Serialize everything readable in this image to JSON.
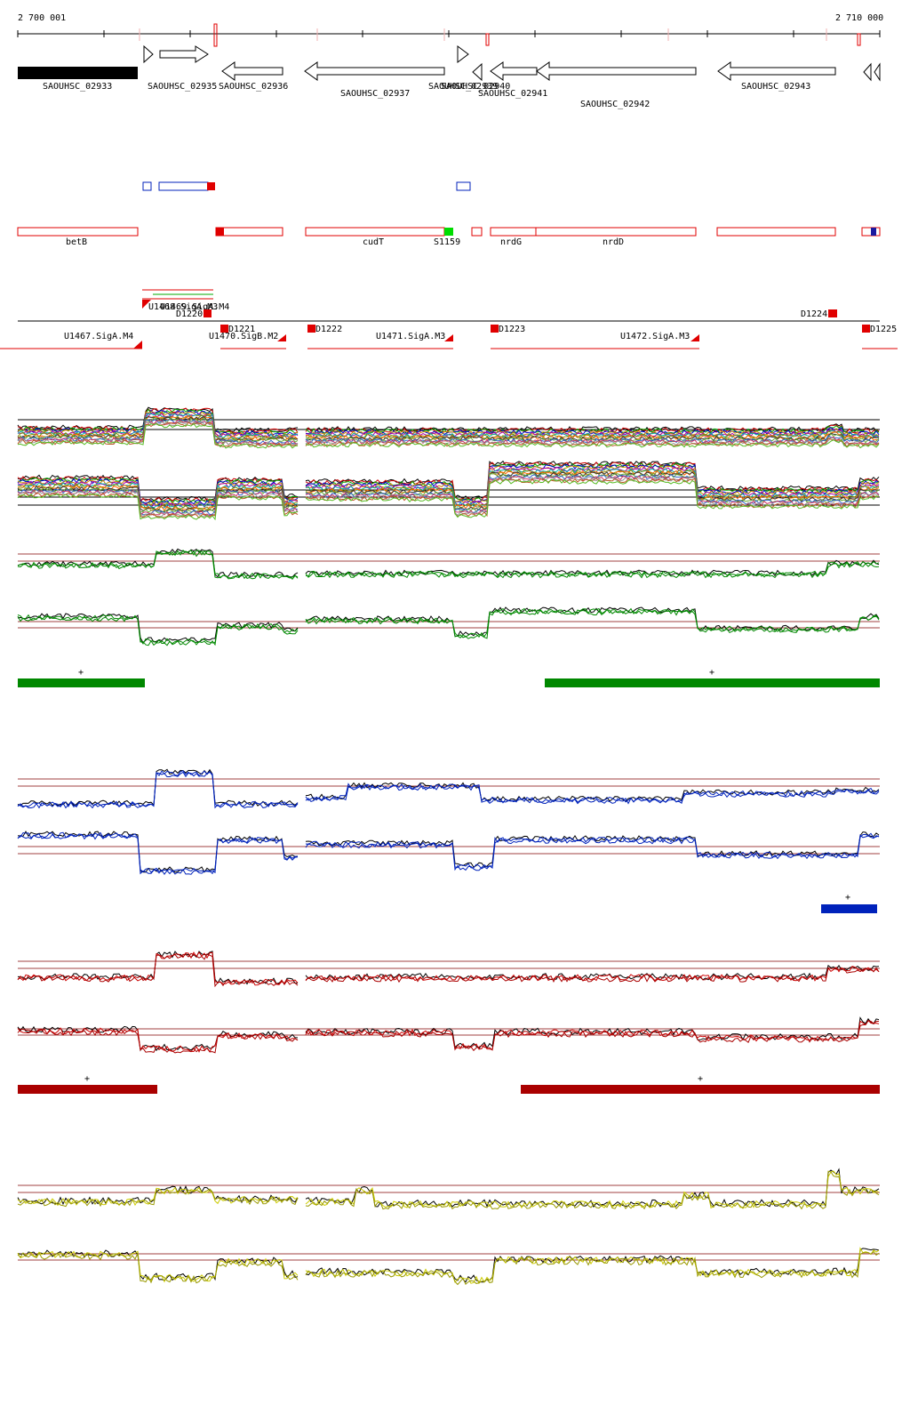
{
  "ruler": {
    "start": "2 700 001",
    "end": "2 710 000"
  },
  "genes": [
    {
      "label": "SAOUHSC_02933"
    },
    {
      "label": "SAOUHSC_02935"
    },
    {
      "label": "SAOUHSC_02936"
    },
    {
      "label": "SAOUHSC_02937"
    },
    {
      "label": "SAOUHSC_02939"
    },
    {
      "label": "SAOUHSC_02940"
    },
    {
      "label": "SAOUHSC_02941"
    },
    {
      "label": "SAOUHSC_02942"
    },
    {
      "label": "SAOUHSC_02943"
    }
  ],
  "annotations": [
    {
      "label": "betB"
    },
    {
      "label": "cudT"
    },
    {
      "label": "S1159"
    },
    {
      "label": "nrdG"
    },
    {
      "label": "nrdD"
    }
  ],
  "tu_labels": [
    {
      "label": "U1468.SigA.M3"
    },
    {
      "label": "U1469.SigA.M4"
    },
    {
      "label": "D1220"
    },
    {
      "label": "D1221"
    },
    {
      "label": "D1222"
    },
    {
      "label": "D1223"
    },
    {
      "label": "D1224"
    },
    {
      "label": "D1225"
    },
    {
      "label": "U1467.SigA.M4"
    },
    {
      "label": "U1470.SigB.M2"
    },
    {
      "label": "U1471.SigA.M3"
    },
    {
      "label": "U1472.SigA.M3"
    }
  ],
  "strand_marks": {
    "green_left": "+",
    "green_right": "+",
    "blue_right": "+",
    "red_left": "+",
    "red_right": "+"
  },
  "colors": {
    "gene_filled": "#000000",
    "annotation_outline": "#e00000",
    "tu_red": "#e00000",
    "sRNA": "#00dd00",
    "group_green": "#008800",
    "group_blue": "#0022bb",
    "group_red": "#aa0000",
    "group_yellow": "#cccc00",
    "threshold_line": "#a04040"
  }
}
